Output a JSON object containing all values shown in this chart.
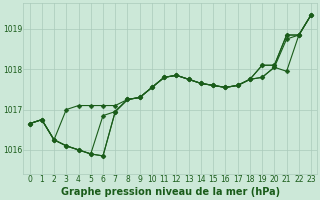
{
  "title": "Graphe pression niveau de la mer (hPa)",
  "background_color": "#cce8d8",
  "grid_color": "#aacabb",
  "line_color": "#1a5c1a",
  "marker_color": "#1a5c1a",
  "x_values": [
    0,
    1,
    2,
    3,
    4,
    5,
    6,
    7,
    8,
    9,
    10,
    11,
    12,
    13,
    14,
    15,
    16,
    17,
    18,
    19,
    20,
    21,
    22,
    23
  ],
  "series": [
    [
      1016.65,
      1016.75,
      1016.25,
      1016.1,
      1016.0,
      1015.9,
      1015.85,
      1016.95,
      1017.25,
      1017.3,
      1017.55,
      1017.8,
      1017.85,
      1017.75,
      1017.65,
      1017.6,
      1017.55,
      1017.6,
      1017.75,
      1017.8,
      1018.05,
      1018.75,
      1018.85,
      1019.35
    ],
    [
      1016.65,
      1016.75,
      1016.25,
      1016.1,
      1016.0,
      1015.9,
      1015.85,
      1016.95,
      1017.25,
      1017.3,
      1017.55,
      1017.8,
      1017.85,
      1017.75,
      1017.65,
      1017.6,
      1017.55,
      1017.6,
      1017.75,
      1017.8,
      1018.05,
      1017.95,
      1018.85,
      1019.35
    ],
    [
      1016.65,
      1016.75,
      1016.25,
      1016.1,
      1016.0,
      1015.9,
      1016.85,
      1016.95,
      1017.25,
      1017.3,
      1017.55,
      1017.8,
      1017.85,
      1017.75,
      1017.65,
      1017.6,
      1017.55,
      1017.6,
      1017.75,
      1018.1,
      1018.1,
      1018.85,
      1018.85,
      1019.35
    ],
    [
      1016.65,
      1016.75,
      1016.25,
      1017.0,
      1017.1,
      1017.1,
      1017.1,
      1017.1,
      1017.25,
      1017.3,
      1017.55,
      1017.8,
      1017.85,
      1017.75,
      1017.65,
      1017.6,
      1017.55,
      1017.6,
      1017.75,
      1018.1,
      1018.1,
      1018.85,
      1018.85,
      1019.35
    ]
  ],
  "ylim": [
    1015.4,
    1019.65
  ],
  "yticks": [
    1016,
    1017,
    1018,
    1019
  ],
  "xlim": [
    -0.5,
    23.5
  ],
  "xticks": [
    0,
    1,
    2,
    3,
    4,
    5,
    6,
    7,
    8,
    9,
    10,
    11,
    12,
    13,
    14,
    15,
    16,
    17,
    18,
    19,
    20,
    21,
    22,
    23
  ],
  "tick_fontsize": 5.5,
  "label_fontsize": 7,
  "linewidth": 0.8,
  "markersize": 2.5
}
